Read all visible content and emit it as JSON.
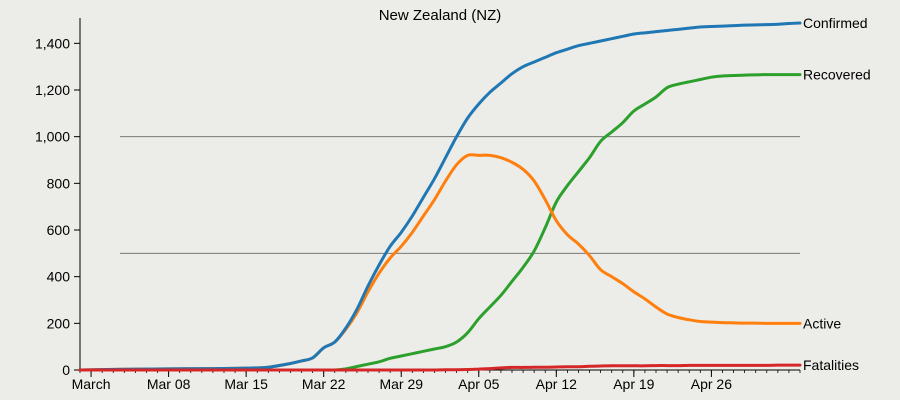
{
  "chart_data": {
    "type": "line",
    "title": "New Zealand (NZ)",
    "xlabel": "",
    "ylabel": "",
    "x_start_date": "2020-03-01",
    "x_tick_labels": [
      "March",
      "Mar 08",
      "Mar 15",
      "Mar 22",
      "Mar 29",
      "Apr 05",
      "Apr 12",
      "Apr 19",
      "Apr 26"
    ],
    "x_tick_dates": [
      "2020-03-01",
      "2020-03-08",
      "2020-03-15",
      "2020-03-22",
      "2020-03-29",
      "2020-04-05",
      "2020-04-12",
      "2020-04-19",
      "2020-04-26"
    ],
    "xlim": [
      "2020-02-29",
      "2020-05-04"
    ],
    "ylim": [
      0,
      1500
    ],
    "y_ticks": [
      0,
      200,
      400,
      600,
      800,
      1000,
      1200,
      1400
    ],
    "y_tick_labels": [
      "0",
      "200",
      "400",
      "600",
      "800",
      "1,000",
      "1,200",
      "1,400"
    ],
    "reference_lines": [
      500,
      1000
    ],
    "grid": false,
    "legend": "line-end labels",
    "x": [
      "2020-02-29",
      "2020-03-04",
      "2020-03-08",
      "2020-03-12",
      "2020-03-15",
      "2020-03-17",
      "2020-03-19",
      "2020-03-20",
      "2020-03-21",
      "2020-03-22",
      "2020-03-23",
      "2020-03-24",
      "2020-03-25",
      "2020-03-26",
      "2020-03-27",
      "2020-03-28",
      "2020-03-29",
      "2020-03-30",
      "2020-03-31",
      "2020-04-01",
      "2020-04-02",
      "2020-04-03",
      "2020-04-04",
      "2020-04-05",
      "2020-04-06",
      "2020-04-07",
      "2020-04-08",
      "2020-04-09",
      "2020-04-10",
      "2020-04-11",
      "2020-04-12",
      "2020-04-13",
      "2020-04-14",
      "2020-04-15",
      "2020-04-16",
      "2020-04-17",
      "2020-04-18",
      "2020-04-19",
      "2020-04-20",
      "2020-04-21",
      "2020-04-22",
      "2020-04-23",
      "2020-04-24",
      "2020-04-25",
      "2020-04-26",
      "2020-04-27",
      "2020-04-28",
      "2020-04-29",
      "2020-04-30",
      "2020-05-01",
      "2020-05-02",
      "2020-05-03",
      "2020-05-04"
    ],
    "series": [
      {
        "name": "Confirmed",
        "color": "#1f77b4",
        "values": [
          0,
          3,
          5,
          6,
          8,
          12,
          28,
          39,
          52,
          95,
          120,
          180,
          260,
          360,
          450,
          530,
          590,
          660,
          740,
          820,
          910,
          1000,
          1080,
          1140,
          1190,
          1230,
          1270,
          1300,
          1320,
          1340,
          1360,
          1375,
          1390,
          1400,
          1410,
          1420,
          1430,
          1440,
          1445,
          1450,
          1455,
          1460,
          1465,
          1470,
          1472,
          1474,
          1476,
          1478,
          1479,
          1480,
          1482,
          1485,
          1487
        ]
      },
      {
        "name": "Recovered",
        "color": "#2ca02c",
        "values": [
          0,
          0,
          0,
          0,
          0,
          0,
          0,
          0,
          0,
          0,
          0,
          5,
          15,
          25,
          35,
          50,
          60,
          70,
          80,
          90,
          100,
          120,
          160,
          220,
          270,
          320,
          380,
          440,
          510,
          610,
          720,
          790,
          850,
          910,
          980,
          1020,
          1060,
          1110,
          1140,
          1170,
          1210,
          1225,
          1235,
          1245,
          1255,
          1260,
          1262,
          1264,
          1265,
          1266,
          1266,
          1266,
          1266
        ]
      },
      {
        "name": "Active",
        "color": "#ff7f0e",
        "values": [
          0,
          3,
          5,
          6,
          8,
          12,
          28,
          39,
          52,
          95,
          120,
          175,
          245,
          335,
          415,
          480,
          530,
          590,
          660,
          730,
          810,
          880,
          920,
          920,
          920,
          910,
          890,
          860,
          810,
          730,
          640,
          580,
          540,
          490,
          430,
          400,
          370,
          335,
          305,
          270,
          240,
          225,
          215,
          208,
          205,
          203,
          202,
          201,
          201,
          200,
          200,
          200,
          200
        ]
      },
      {
        "name": "Fatalities",
        "color": "#d62728",
        "values": [
          0,
          0,
          0,
          0,
          0,
          0,
          0,
          0,
          0,
          0,
          0,
          0,
          0,
          0,
          0,
          0,
          0,
          0,
          0,
          0,
          1,
          1,
          2,
          4,
          6,
          9,
          11,
          11,
          12,
          12,
          13,
          14,
          14,
          16,
          17,
          18,
          18,
          18,
          18,
          19,
          19,
          19,
          20,
          20,
          20,
          20,
          20,
          20,
          20,
          20,
          21,
          21,
          21
        ]
      }
    ]
  }
}
